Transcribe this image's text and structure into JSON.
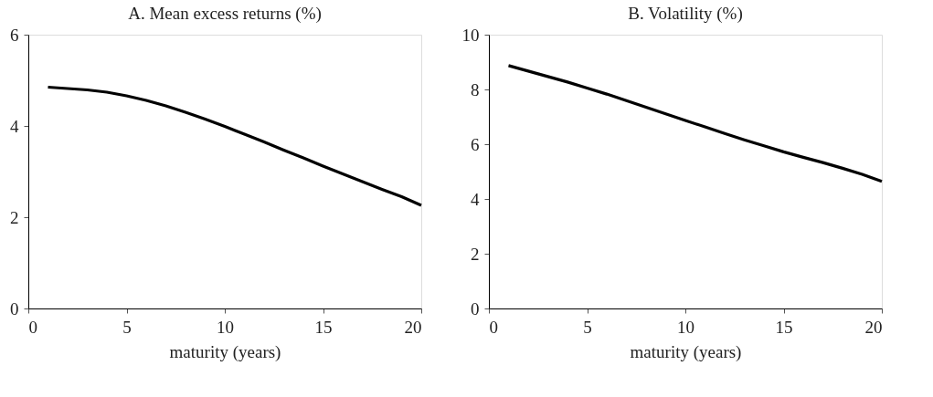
{
  "chart_data": [
    {
      "type": "line",
      "title": "A. Mean excess returns (%)",
      "xlabel": "maturity (years)",
      "x": [
        1,
        2,
        3,
        4,
        5,
        6,
        7,
        8,
        9,
        10,
        11,
        12,
        13,
        14,
        15,
        16,
        17,
        18,
        19,
        20
      ],
      "series": [
        {
          "color": "#000000",
          "values": [
            4.85,
            4.82,
            4.79,
            4.74,
            4.66,
            4.56,
            4.44,
            4.3,
            4.15,
            3.99,
            3.82,
            3.65,
            3.47,
            3.3,
            3.12,
            2.95,
            2.78,
            2.61,
            2.45,
            2.26
          ]
        }
      ],
      "xlim": [
        0,
        20
      ],
      "xticks": [
        0,
        5,
        10,
        15,
        20
      ],
      "ylim": [
        0,
        6
      ],
      "yticks": [
        0,
        2,
        4,
        6
      ],
      "grid": false,
      "line_style": "solid"
    },
    {
      "type": "line",
      "title": "B. Volatility (%)",
      "xlabel": "maturity (years)",
      "x": [
        1,
        2,
        3,
        4,
        5,
        6,
        7,
        8,
        9,
        10,
        11,
        12,
        13,
        14,
        15,
        16,
        17,
        18,
        19,
        20
      ],
      "series": [
        {
          "color": "#000000",
          "values": [
            8.87,
            8.67,
            8.47,
            8.27,
            8.05,
            7.83,
            7.59,
            7.35,
            7.11,
            6.87,
            6.63,
            6.39,
            6.16,
            5.94,
            5.72,
            5.52,
            5.33,
            5.12,
            4.9,
            4.64
          ]
        }
      ],
      "xlim": [
        0,
        20
      ],
      "xticks": [
        0,
        5,
        10,
        15,
        20
      ],
      "ylim": [
        0,
        10
      ],
      "yticks": [
        0,
        2,
        4,
        6,
        8,
        10
      ],
      "grid": false,
      "line_style": "solid"
    }
  ]
}
